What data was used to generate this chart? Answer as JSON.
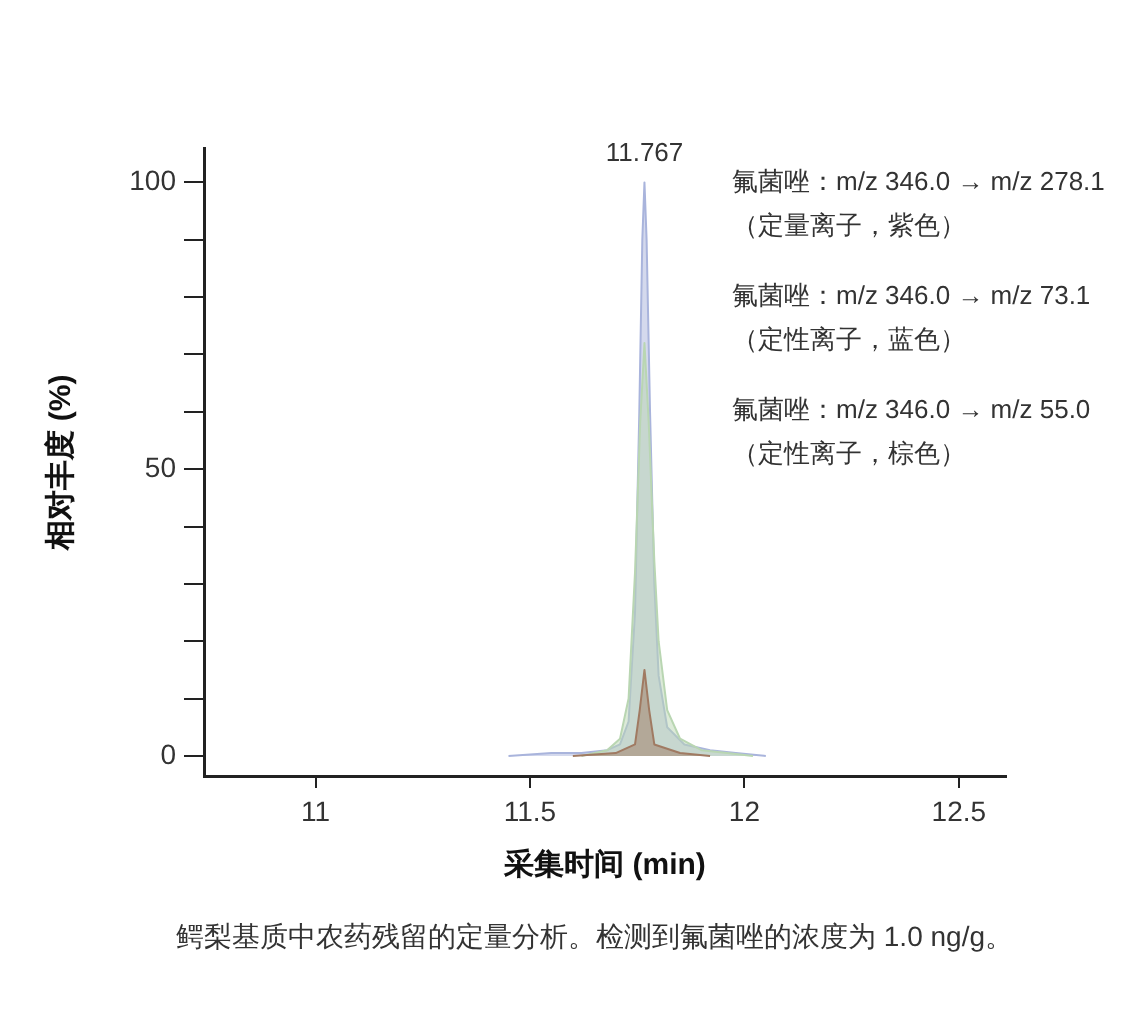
{
  "chart_data": {
    "type": "area",
    "xlabel": "采集时间 (min)",
    "ylabel": "相对丰度 (%)",
    "xlim": [
      10.74,
      12.61
    ],
    "xticks": [
      11,
      11.5,
      12,
      12.5
    ],
    "ylim": [
      -3.5,
      106
    ],
    "yticks": [
      0,
      {
        "value": 10,
        "label": null
      },
      {
        "value": 20,
        "label": null
      },
      {
        "value": 30,
        "label": null
      },
      {
        "value": 40,
        "label": null
      },
      50,
      {
        "value": 60,
        "label": null
      },
      {
        "value": 70,
        "label": null
      },
      {
        "value": 80,
        "label": null
      },
      {
        "value": 90,
        "label": null
      },
      100
    ],
    "series": [
      {
        "color": "#a9b4dc",
        "x": [
          11.45,
          11.55,
          11.62,
          11.68,
          11.71,
          11.73,
          11.745,
          11.755,
          11.762,
          11.767,
          11.772,
          11.78,
          11.79,
          11.8,
          11.82,
          11.86,
          11.92,
          11.98,
          12.05
        ],
        "values": [
          0,
          0.5,
          0.5,
          1,
          2,
          6,
          25,
          60,
          90,
          100,
          90,
          60,
          30,
          14,
          5,
          2,
          1,
          0.5,
          0
        ]
      },
      {
        "color": "#b9d6b2",
        "x": [
          11.62,
          11.68,
          11.71,
          11.73,
          11.745,
          11.757,
          11.767,
          11.777,
          11.79,
          11.8,
          11.82,
          11.85,
          11.9,
          11.96,
          12.02
        ],
        "values": [
          0,
          1,
          3,
          10,
          32,
          58,
          72,
          58,
          34,
          20,
          8,
          3,
          1,
          0.5,
          0
        ]
      },
      {
        "color": "#a07a62",
        "x": [
          11.6,
          11.7,
          11.745,
          11.756,
          11.767,
          11.778,
          11.79,
          11.85,
          11.92
        ],
        "values": [
          0,
          0.5,
          2,
          8,
          15,
          8,
          2,
          0.5,
          0
        ]
      }
    ],
    "annotations": [
      {
        "text": "11.767",
        "x": 11.767,
        "y": 100
      },
      "氟菌唑：m/z 346.0 → m/z 278.1\n（定量离子，紫色）",
      "氟菌唑：m/z 346.0 → m/z 73.1\n（定性离子，蓝色）",
      "氟菌唑：m/z 346.0 → m/z 55.0\n（定性离子，棕色）",
      "鳄梨基质中农药残留的定量分析。检测到氟菌唑的浓度为 1.0 ng/g。"
    ]
  }
}
